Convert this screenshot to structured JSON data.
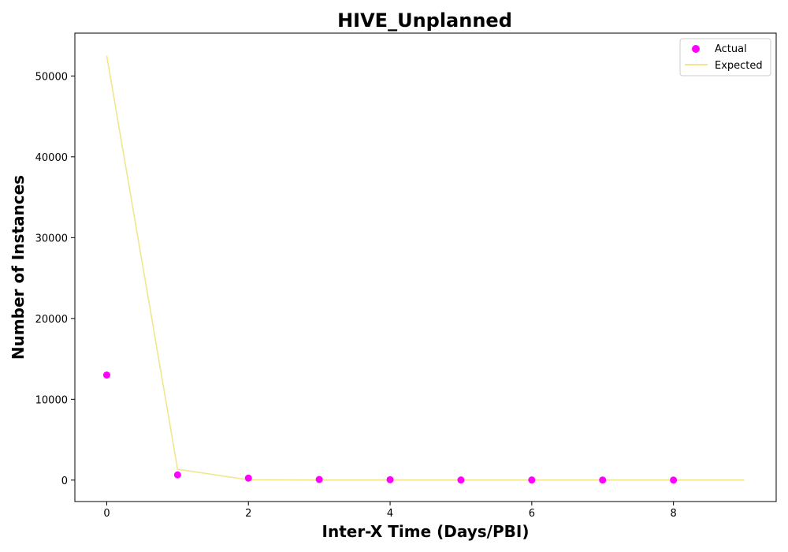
{
  "chart_data": {
    "type": "scatter",
    "title": "HIVE_Unplanned",
    "xlabel": "Inter-X Time (Days/PBI)",
    "ylabel": "Number of Instances",
    "xlim": [
      -0.45,
      9.45
    ],
    "ylim": [
      -2650,
      55300
    ],
    "xticks": [
      0,
      2,
      4,
      6,
      8
    ],
    "yticks": [
      0,
      10000,
      20000,
      30000,
      40000,
      50000
    ],
    "grid": false,
    "legend_position": "top-right",
    "series": [
      {
        "name": "Actual",
        "kind": "scatter",
        "color": "#ff00ff",
        "x": [
          0,
          1,
          2,
          3,
          4,
          5,
          6,
          7,
          8
        ],
        "y": [
          13000,
          650,
          250,
          80,
          50,
          20,
          15,
          10,
          5
        ]
      },
      {
        "name": "Expected",
        "kind": "line",
        "color": "#f0e68c",
        "x": [
          0,
          1,
          2,
          3,
          4,
          5,
          6,
          7,
          8,
          9
        ],
        "y": [
          52500,
          1350,
          40,
          5,
          2,
          1,
          0,
          0,
          0,
          0
        ]
      }
    ]
  }
}
